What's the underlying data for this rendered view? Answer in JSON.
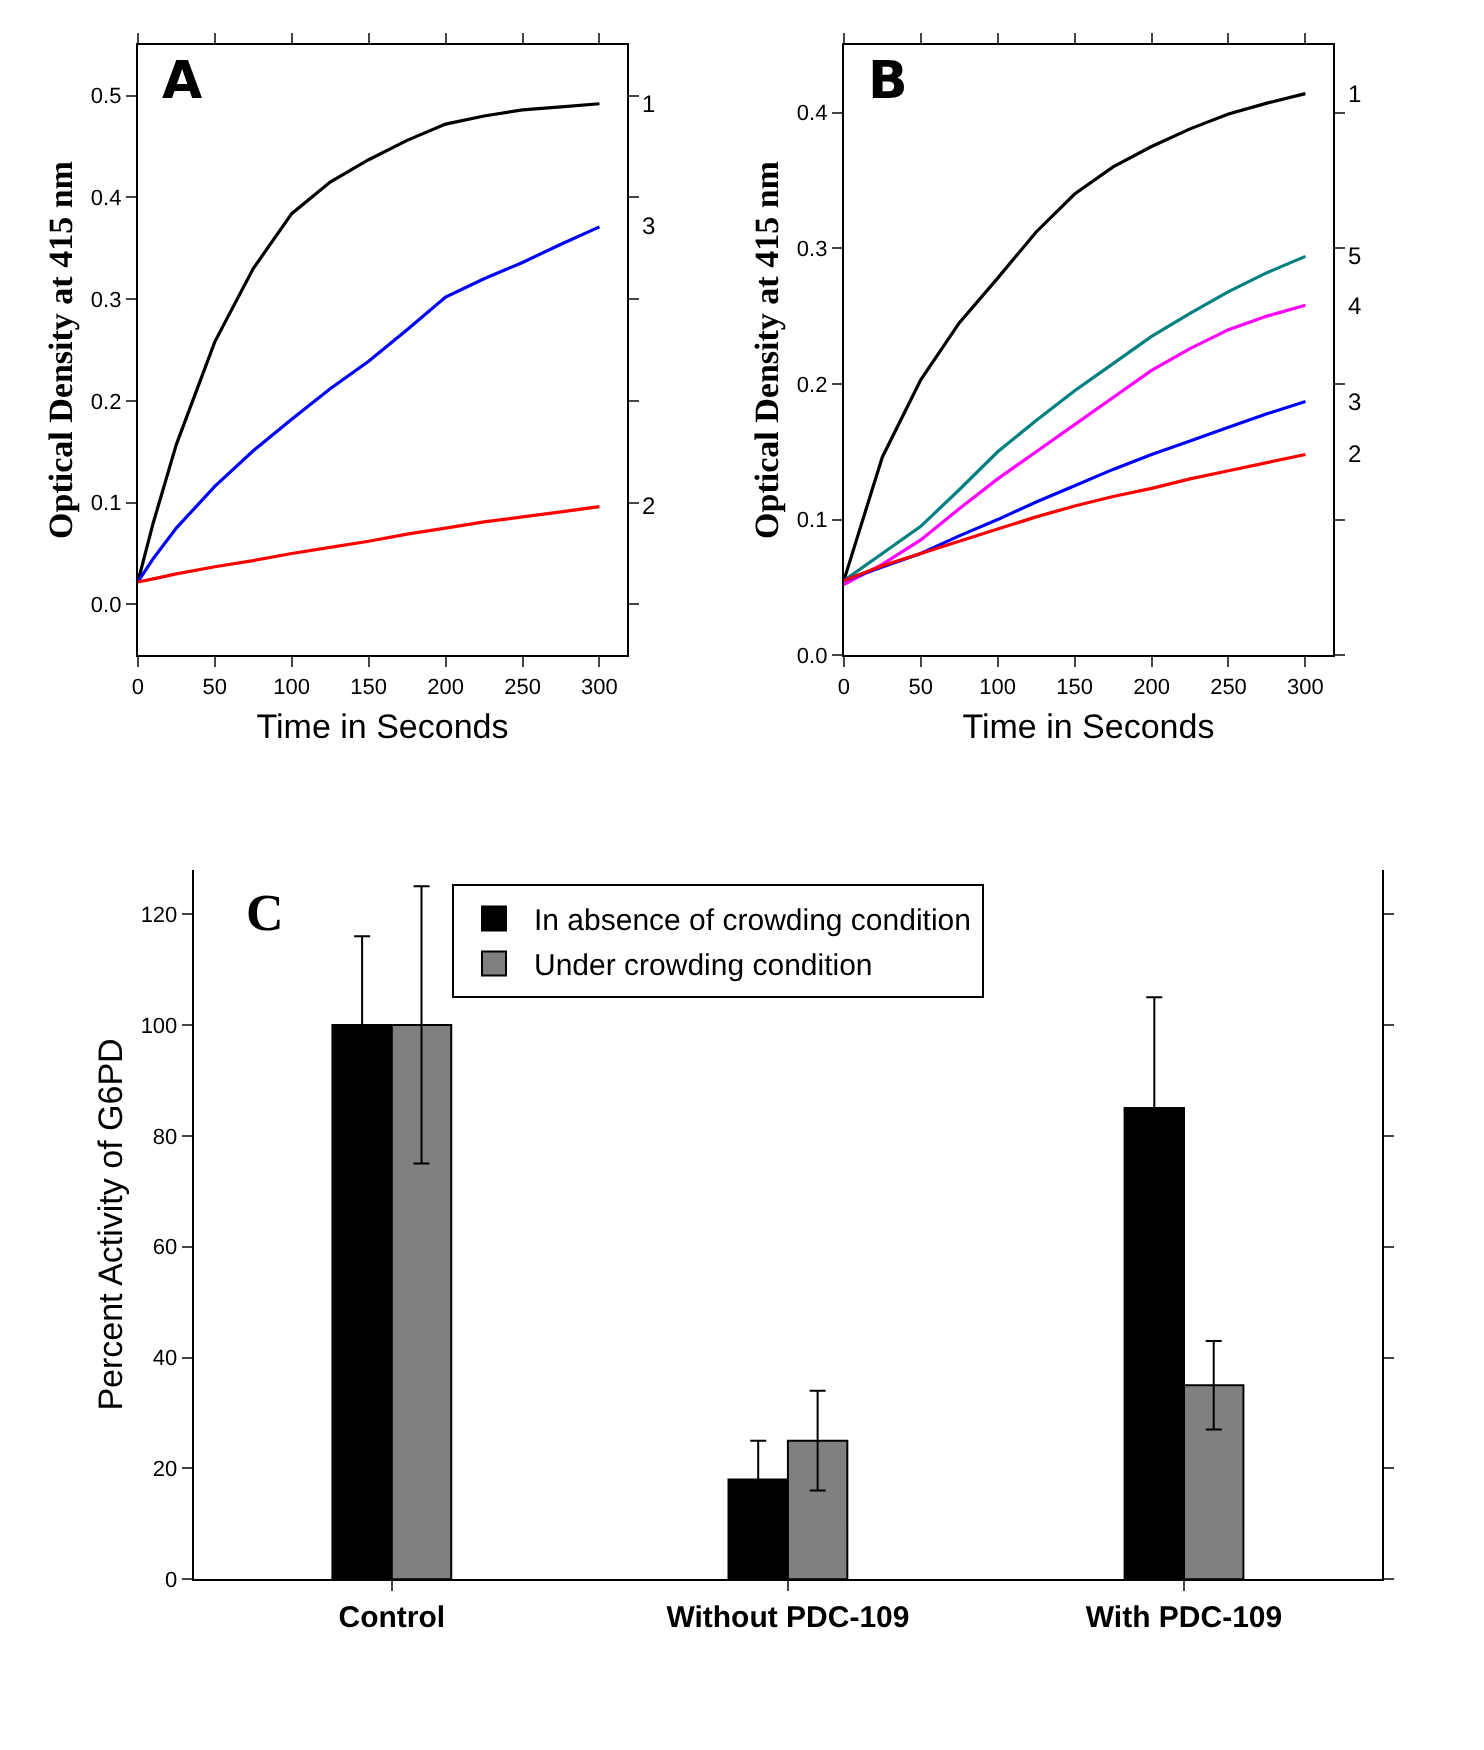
{
  "chart_data": [
    {
      "type": "line",
      "xlabel": "Time in Seconds",
      "ylabel": "Optical Density at 415 nm",
      "annotations": [
        "A"
      ],
      "xlim": [
        0,
        318
      ],
      "xticks": [
        0,
        50,
        100,
        150,
        200,
        250,
        300
      ],
      "ylim": [
        -0.05,
        0.55
      ],
      "yticks": [
        {
          "value": 0,
          "label": "0.0"
        },
        0.1,
        0.2,
        0.3,
        0.4,
        0.5
      ],
      "x": [
        0,
        10,
        25,
        50,
        75,
        100,
        125,
        150,
        175,
        200,
        225,
        250,
        275,
        300
      ],
      "legend": false,
      "marker": "none",
      "line_style": "solid",
      "series": [
        {
          "name": "1",
          "color": "#000000",
          "values": [
            0.022,
            0.08,
            0.157,
            0.258,
            0.33,
            0.384,
            0.415,
            0.437,
            0.456,
            0.472,
            0.48,
            0.486,
            0.489,
            0.492
          ]
        },
        {
          "name": "3",
          "color": "#0000ff",
          "values": [
            0.022,
            0.045,
            0.075,
            0.116,
            0.151,
            0.182,
            0.212,
            0.239,
            0.27,
            0.302,
            0.32,
            0.336,
            0.354,
            0.371
          ]
        },
        {
          "name": "2",
          "color": "#ff0000",
          "values": [
            0.022,
            0.025,
            0.03,
            0.037,
            0.043,
            0.05,
            0.056,
            0.062,
            0.069,
            0.075,
            0.081,
            0.086,
            0.091,
            0.096
          ]
        }
      ]
    },
    {
      "type": "line",
      "xlabel": "Time in Seconds",
      "ylabel": "Optical Density at 415 nm",
      "annotations": [
        "B"
      ],
      "xlim": [
        0,
        318
      ],
      "xticks": [
        0,
        50,
        100,
        150,
        200,
        250,
        300
      ],
      "ylim": [
        0,
        0.45
      ],
      "yticks": [
        {
          "value": 0,
          "label": "0.0"
        },
        0.1,
        0.2,
        0.3,
        0.4
      ],
      "x": [
        0,
        25,
        50,
        75,
        100,
        125,
        150,
        175,
        200,
        225,
        250,
        275,
        300
      ],
      "legend": false,
      "marker": "none",
      "line_style": "solid",
      "series": [
        {
          "name": "1",
          "color": "#000000",
          "values": [
            0.055,
            0.146,
            0.203,
            0.245,
            0.278,
            0.312,
            0.34,
            0.36,
            0.375,
            0.388,
            0.399,
            0.407,
            0.414
          ]
        },
        {
          "name": "5",
          "color": "#008080",
          "values": [
            0.055,
            0.075,
            0.095,
            0.122,
            0.15,
            0.173,
            0.195,
            0.215,
            0.235,
            0.252,
            0.268,
            0.282,
            0.294
          ]
        },
        {
          "name": "4",
          "color": "#ff00ff",
          "values": [
            0.052,
            0.067,
            0.085,
            0.108,
            0.13,
            0.15,
            0.17,
            0.19,
            0.21,
            0.226,
            0.24,
            0.25,
            0.258
          ]
        },
        {
          "name": "3",
          "color": "#0000ff",
          "values": [
            0.055,
            0.065,
            0.075,
            0.088,
            0.1,
            0.113,
            0.125,
            0.137,
            0.148,
            0.158,
            0.168,
            0.178,
            0.187
          ]
        },
        {
          "name": "2",
          "color": "#ff0000",
          "values": [
            0.055,
            0.066,
            0.075,
            0.084,
            0.093,
            0.102,
            0.11,
            0.117,
            0.123,
            0.13,
            0.136,
            0.142,
            0.148
          ]
        }
      ]
    },
    {
      "type": "bar",
      "ylabel": "Percent Activity of G6PD",
      "annotations": [
        "C"
      ],
      "categories": [
        "Control",
        "Without PDC-109",
        "With PDC-109"
      ],
      "ylim": [
        0,
        128
      ],
      "yticks": [
        0,
        20,
        40,
        60,
        80,
        100,
        120
      ],
      "legend": "top",
      "series": [
        {
          "name": "In absence of crowding condition",
          "color": "#000000",
          "values": [
            100,
            18,
            85
          ],
          "errors": [
            16,
            7,
            20
          ]
        },
        {
          "name": "Under crowding condition",
          "color": "#808080",
          "values": [
            100,
            25,
            35
          ],
          "errors": [
            25,
            9,
            8
          ]
        }
      ]
    }
  ]
}
